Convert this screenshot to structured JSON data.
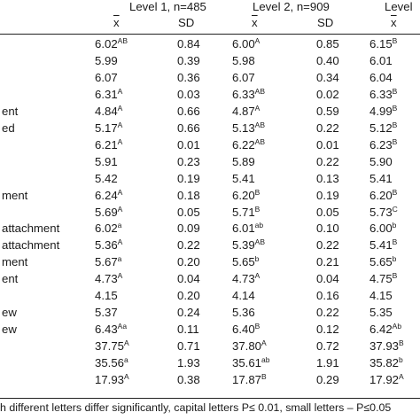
{
  "header": {
    "levels": [
      {
        "label": "Level 1, n=485"
      },
      {
        "label": "Level 2, n=909"
      },
      {
        "label": "Level"
      }
    ],
    "mean_symbol": "x",
    "sd_label": "SD"
  },
  "rows": [
    {
      "label": "",
      "l1_mean": "6.02",
      "l1_sup": "AB",
      "l1_sd": "0.84",
      "l2_mean": "6.00",
      "l2_sup": "A",
      "l2_sd": "0.85",
      "l3_mean": "6.15",
      "l3_sup": "B"
    },
    {
      "label": "",
      "l1_mean": "5.99",
      "l1_sup": "",
      "l1_sd": "0.39",
      "l2_mean": "5.98",
      "l2_sup": "",
      "l2_sd": "0.40",
      "l3_mean": "6.01",
      "l3_sup": ""
    },
    {
      "label": "",
      "l1_mean": "6.07",
      "l1_sup": "",
      "l1_sd": "0.36",
      "l2_mean": "6.07",
      "l2_sup": "",
      "l2_sd": "0.34",
      "l3_mean": "6.04",
      "l3_sup": ""
    },
    {
      "label": "",
      "l1_mean": "6.31",
      "l1_sup": "A",
      "l1_sd": "0.03",
      "l2_mean": "6.33",
      "l2_sup": "AB",
      "l2_sd": "0.02",
      "l3_mean": "6.33",
      "l3_sup": "B"
    },
    {
      "label": "ent",
      "l1_mean": "4.84",
      "l1_sup": "A",
      "l1_sd": "0.66",
      "l2_mean": "4.87",
      "l2_sup": "A",
      "l2_sd": "0.59",
      "l3_mean": "4.99",
      "l3_sup": "B"
    },
    {
      "label": "ed",
      "l1_mean": "5.17",
      "l1_sup": "A",
      "l1_sd": "0.66",
      "l2_mean": "5.13",
      "l2_sup": "AB",
      "l2_sd": "0.22",
      "l3_mean": "5.12",
      "l3_sup": "B"
    },
    {
      "label": "",
      "l1_mean": "6.21",
      "l1_sup": "A",
      "l1_sd": "0.01",
      "l2_mean": "6.22",
      "l2_sup": "AB",
      "l2_sd": "0.01",
      "l3_mean": "6.23",
      "l3_sup": "B"
    },
    {
      "label": "",
      "l1_mean": "5.91",
      "l1_sup": "",
      "l1_sd": "0.23",
      "l2_mean": "5.89",
      "l2_sup": "",
      "l2_sd": "0.22",
      "l3_mean": "5.90",
      "l3_sup": ""
    },
    {
      "label": "",
      "l1_mean": "5.42",
      "l1_sup": "",
      "l1_sd": "0.19",
      "l2_mean": "5.41",
      "l2_sup": "",
      "l2_sd": "0.13",
      "l3_mean": "5.41",
      "l3_sup": ""
    },
    {
      "label": "ment",
      "l1_mean": "6.24",
      "l1_sup": "A",
      "l1_sd": "0.18",
      "l2_mean": "6.20",
      "l2_sup": "B",
      "l2_sd": "0.19",
      "l3_mean": "6.20",
      "l3_sup": "B"
    },
    {
      "label": "",
      "l1_mean": "5.69",
      "l1_sup": "A",
      "l1_sd": "0.05",
      "l2_mean": "5.71",
      "l2_sup": "B",
      "l2_sd": "0.05",
      "l3_mean": "5.73",
      "l3_sup": "C"
    },
    {
      "label": "attachment",
      "l1_mean": "6.02",
      "l1_sup": "a",
      "l1_sd": "0.09",
      "l2_mean": "6.01",
      "l2_sup": "ab",
      "l2_sd": "0.10",
      "l3_mean": "6.00",
      "l3_sup": "b"
    },
    {
      "label": "attachment",
      "l1_mean": "5.36",
      "l1_sup": "A",
      "l1_sd": "0.22",
      "l2_mean": "5.39",
      "l2_sup": "AB",
      "l2_sd": "0.22",
      "l3_mean": "5.41",
      "l3_sup": "B"
    },
    {
      "label": "ment",
      "l1_mean": "5.67",
      "l1_sup": "a",
      "l1_sd": "0.20",
      "l2_mean": "5.65",
      "l2_sup": "b",
      "l2_sd": "0.21",
      "l3_mean": "5.65",
      "l3_sup": "b"
    },
    {
      "label": "ent",
      "l1_mean": "4.73",
      "l1_sup": "A",
      "l1_sd": "0.04",
      "l2_mean": "4.73",
      "l2_sup": "A",
      "l2_sd": "0.04",
      "l3_mean": "4.75",
      "l3_sup": "B"
    },
    {
      "label": "",
      "l1_mean": "4.15",
      "l1_sup": "",
      "l1_sd": "0.20",
      "l2_mean": "4.14",
      "l2_sup": "",
      "l2_sd": "0.16",
      "l3_mean": "4.15",
      "l3_sup": ""
    },
    {
      "label": "ew",
      "l1_mean": "5.37",
      "l1_sup": "",
      "l1_sd": "0.24",
      "l2_mean": "5.36",
      "l2_sup": "",
      "l2_sd": "0.22",
      "l3_mean": "5.35",
      "l3_sup": ""
    },
    {
      "label": "ew",
      "l1_mean": "6.43",
      "l1_sup": "Aa",
      "l1_sd": "0.11",
      "l2_mean": "6.40",
      "l2_sup": "B",
      "l2_sd": "0.12",
      "l3_mean": "6.42",
      "l3_sup": "Ab"
    },
    {
      "label": "",
      "l1_mean": "37.75",
      "l1_sup": "A",
      "l1_sd": "0.71",
      "l2_mean": "37.80",
      "l2_sup": "A",
      "l2_sd": "0.72",
      "l3_mean": "37.93",
      "l3_sup": "B"
    },
    {
      "label": "",
      "l1_mean": "35.56",
      "l1_sup": "a",
      "l1_sd": "1.93",
      "l2_mean": "35.61",
      "l2_sup": "ab",
      "l2_sd": "1.91",
      "l3_mean": "35.82",
      "l3_sup": "b"
    },
    {
      "label": "",
      "l1_mean": "17.93",
      "l1_sup": "A",
      "l1_sd": "0.38",
      "l2_mean": "17.87",
      "l2_sup": "B",
      "l2_sd": "0.29",
      "l3_mean": "17.92",
      "l3_sup": "A"
    }
  ],
  "footnote": "h different letters differ significantly, capital letters P≤ 0.01, small letters – P≤0.05"
}
